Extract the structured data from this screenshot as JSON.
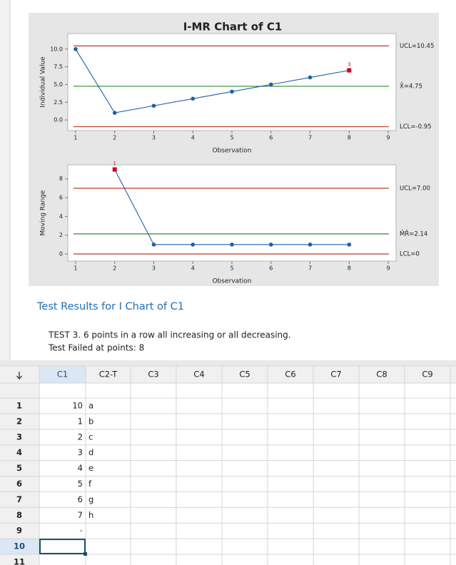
{
  "chart_data": [
    {
      "type": "line",
      "title": "I-MR Chart of C1",
      "xlabel": "Observation",
      "ylabel": "Individual Value",
      "x": [
        1,
        2,
        3,
        4,
        5,
        6,
        7,
        8
      ],
      "series": [
        {
          "color": "#1f5fa8",
          "values": [
            10,
            1,
            2,
            3,
            4,
            5,
            6,
            7
          ]
        }
      ],
      "xlim": [
        0.8,
        9.2
      ],
      "xticks": [
        1,
        2,
        3,
        4,
        5,
        6,
        7,
        8,
        9
      ],
      "ylim": [
        -1.5,
        12.2
      ],
      "yticks": [
        {
          "value": 0,
          "label": "0.0"
        },
        2.5,
        {
          "value": 5,
          "label": "5.0"
        },
        7.5,
        {
          "value": 10,
          "label": "10.0"
        }
      ],
      "grid": false,
      "control_limits": [
        {
          "label": "UCL=10.45",
          "value": 10.45,
          "color": "#c0392b"
        },
        {
          "label": "X̄=4.75",
          "value": 4.75,
          "color": "#2e8b2e"
        },
        {
          "label": "LCL=-0.95",
          "value": -0.95,
          "color": "#c0392b"
        }
      ],
      "annotations": [
        {
          "text": "3",
          "x": 8,
          "y": 7,
          "color": "#d0021b"
        }
      ]
    },
    {
      "type": "line",
      "xlabel": "Observation",
      "ylabel": "Moving Range",
      "x": [
        1,
        2,
        3,
        4,
        5,
        6,
        7,
        8
      ],
      "series": [
        {
          "color": "#1f5fa8",
          "values": [
            null,
            9,
            1,
            1,
            1,
            1,
            1,
            1
          ]
        }
      ],
      "xlim": [
        0.8,
        9.2
      ],
      "xticks": [
        1,
        2,
        3,
        4,
        5,
        6,
        7,
        8,
        9
      ],
      "ylim": [
        -0.76,
        9.5
      ],
      "yticks": [
        0,
        2,
        4,
        6,
        8
      ],
      "grid": false,
      "control_limits": [
        {
          "label": "UCL=7.00",
          "value": 7,
          "color": "#c0392b"
        },
        {
          "label": "M̄R̄=2.14",
          "value": 2.14,
          "color": "#2e8b2e"
        },
        {
          "label": "LCL=0",
          "value": 0,
          "color": "#c0392b"
        }
      ],
      "annotations": [
        {
          "text": "1",
          "x": 2,
          "y": 9,
          "color": "#d0021b"
        }
      ]
    }
  ],
  "test_results": {
    "heading": "Test Results for I Chart of C1",
    "lines": [
      "TEST 3. 6 points in a row all increasing or all decreasing.",
      "Test Failed at points:  8"
    ]
  },
  "worksheet": {
    "columns": [
      "C1",
      "C2-T",
      "C3",
      "C4",
      "C5",
      "C6",
      "C7",
      "C8",
      "C9"
    ],
    "row_numbers": [
      1,
      2,
      3,
      4,
      5,
      6,
      7,
      8,
      9,
      10,
      11
    ],
    "rows": [
      [
        10,
        "a"
      ],
      [
        1,
        "b"
      ],
      [
        2,
        "c"
      ],
      [
        3,
        "d"
      ],
      [
        4,
        "e"
      ],
      [
        5,
        "f"
      ],
      [
        6,
        "g"
      ],
      [
        7,
        "h"
      ],
      [
        "*"
      ]
    ]
  }
}
